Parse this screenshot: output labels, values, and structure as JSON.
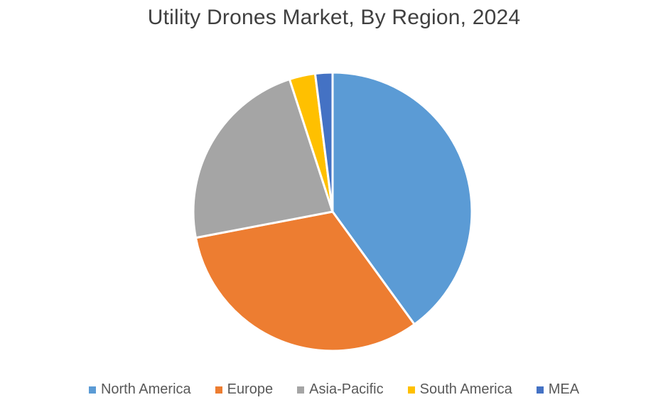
{
  "chart_data": {
    "type": "pie",
    "title": "Utility Drones Market, By Region, 2024",
    "categories": [
      "North America",
      "Europe",
      "Asia-Pacific",
      "South America",
      "MEA"
    ],
    "values": [
      40,
      32,
      23,
      3,
      2
    ],
    "unit": "",
    "colors": [
      "#5B9BD5",
      "#ED7D31",
      "#A5A5A5",
      "#FFC000",
      "#4472C4"
    ],
    "legend_position": "bottom",
    "start_angle": "12 o'clock, clockwise"
  }
}
